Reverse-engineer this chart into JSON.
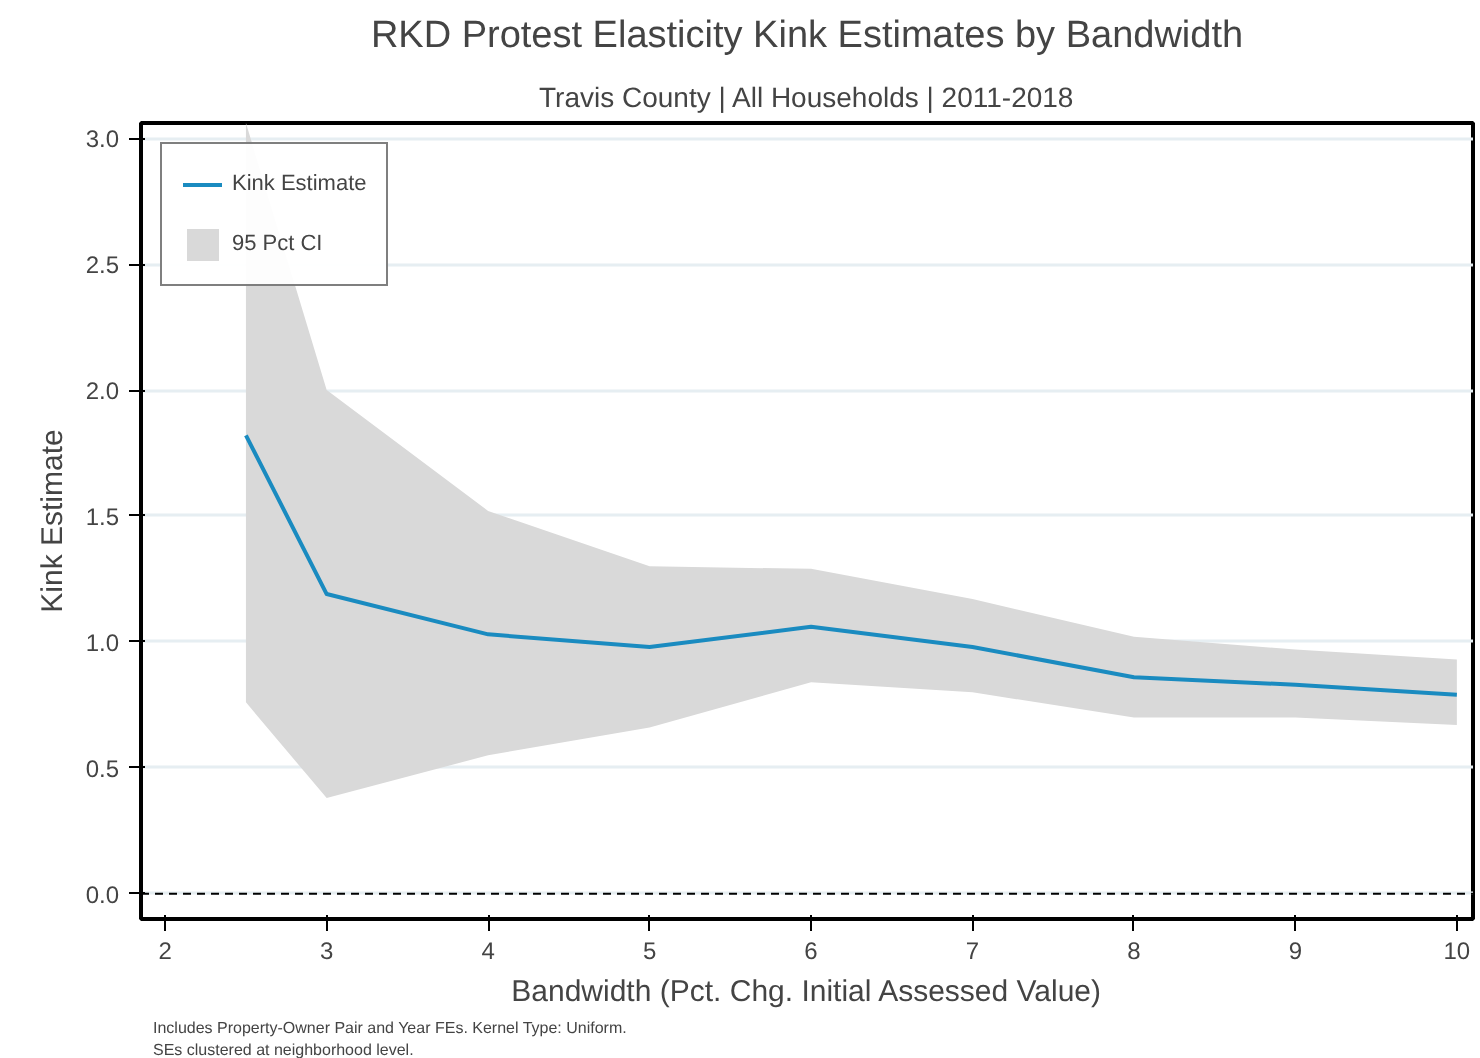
{
  "chart_data": {
    "type": "line",
    "title": "RKD Protest Elasticity Kink Estimates by Bandwidth",
    "subtitle": "Travis County | All Households | 2011-2018",
    "xlabel": "Bandwidth (Pct. Chg. Initial Assessed Value)",
    "ylabel": "Kink Estimate",
    "x": [
      2.5,
      3,
      4,
      5,
      6,
      7,
      8,
      9,
      10
    ],
    "series": [
      {
        "name": "Kink Estimate",
        "color": "#1a8bc0",
        "values": [
          1.82,
          1.19,
          1.03,
          0.98,
          1.06,
          0.98,
          0.86,
          0.83,
          0.79
        ],
        "lower": [
          0.76,
          0.38,
          0.55,
          0.66,
          0.84,
          0.8,
          0.7,
          0.7,
          0.67
        ],
        "upper": [
          3.06,
          2.0,
          1.52,
          1.3,
          1.29,
          1.17,
          1.02,
          0.97,
          0.93
        ]
      },
      {
        "name": "95 Pct CI",
        "type": "area",
        "color": "#d9d9d9",
        "values": [
          null,
          null,
          null,
          null,
          null,
          null,
          null,
          null,
          null
        ]
      }
    ],
    "xlim": [
      1.85,
      10.1
    ],
    "xticks": [
      2,
      3,
      4,
      5,
      6,
      7,
      8,
      9,
      10
    ],
    "ylim": [
      -0.1,
      3.06
    ],
    "yticks": [
      {
        "value": 0,
        "label": "0.0"
      },
      {
        "value": 0.5,
        "label": "0.5"
      },
      {
        "value": 1,
        "label": "1.0"
      },
      {
        "value": 1.5,
        "label": "1.5"
      },
      {
        "value": 2,
        "label": "2.0"
      },
      {
        "value": 2.5,
        "label": "2.5"
      },
      {
        "value": 3,
        "label": "3.0"
      }
    ],
    "ref_lines": [
      {
        "axis": "y",
        "value": 0,
        "line_style": "dashed",
        "color": "#000000"
      }
    ],
    "grid": "y",
    "legend": "top left",
    "line_style": "solid",
    "annotations": [
      "Includes Property-Owner Pair and Year FEs. Kernel Type: Uniform.",
      "SEs clustered at neighborhood level."
    ]
  }
}
